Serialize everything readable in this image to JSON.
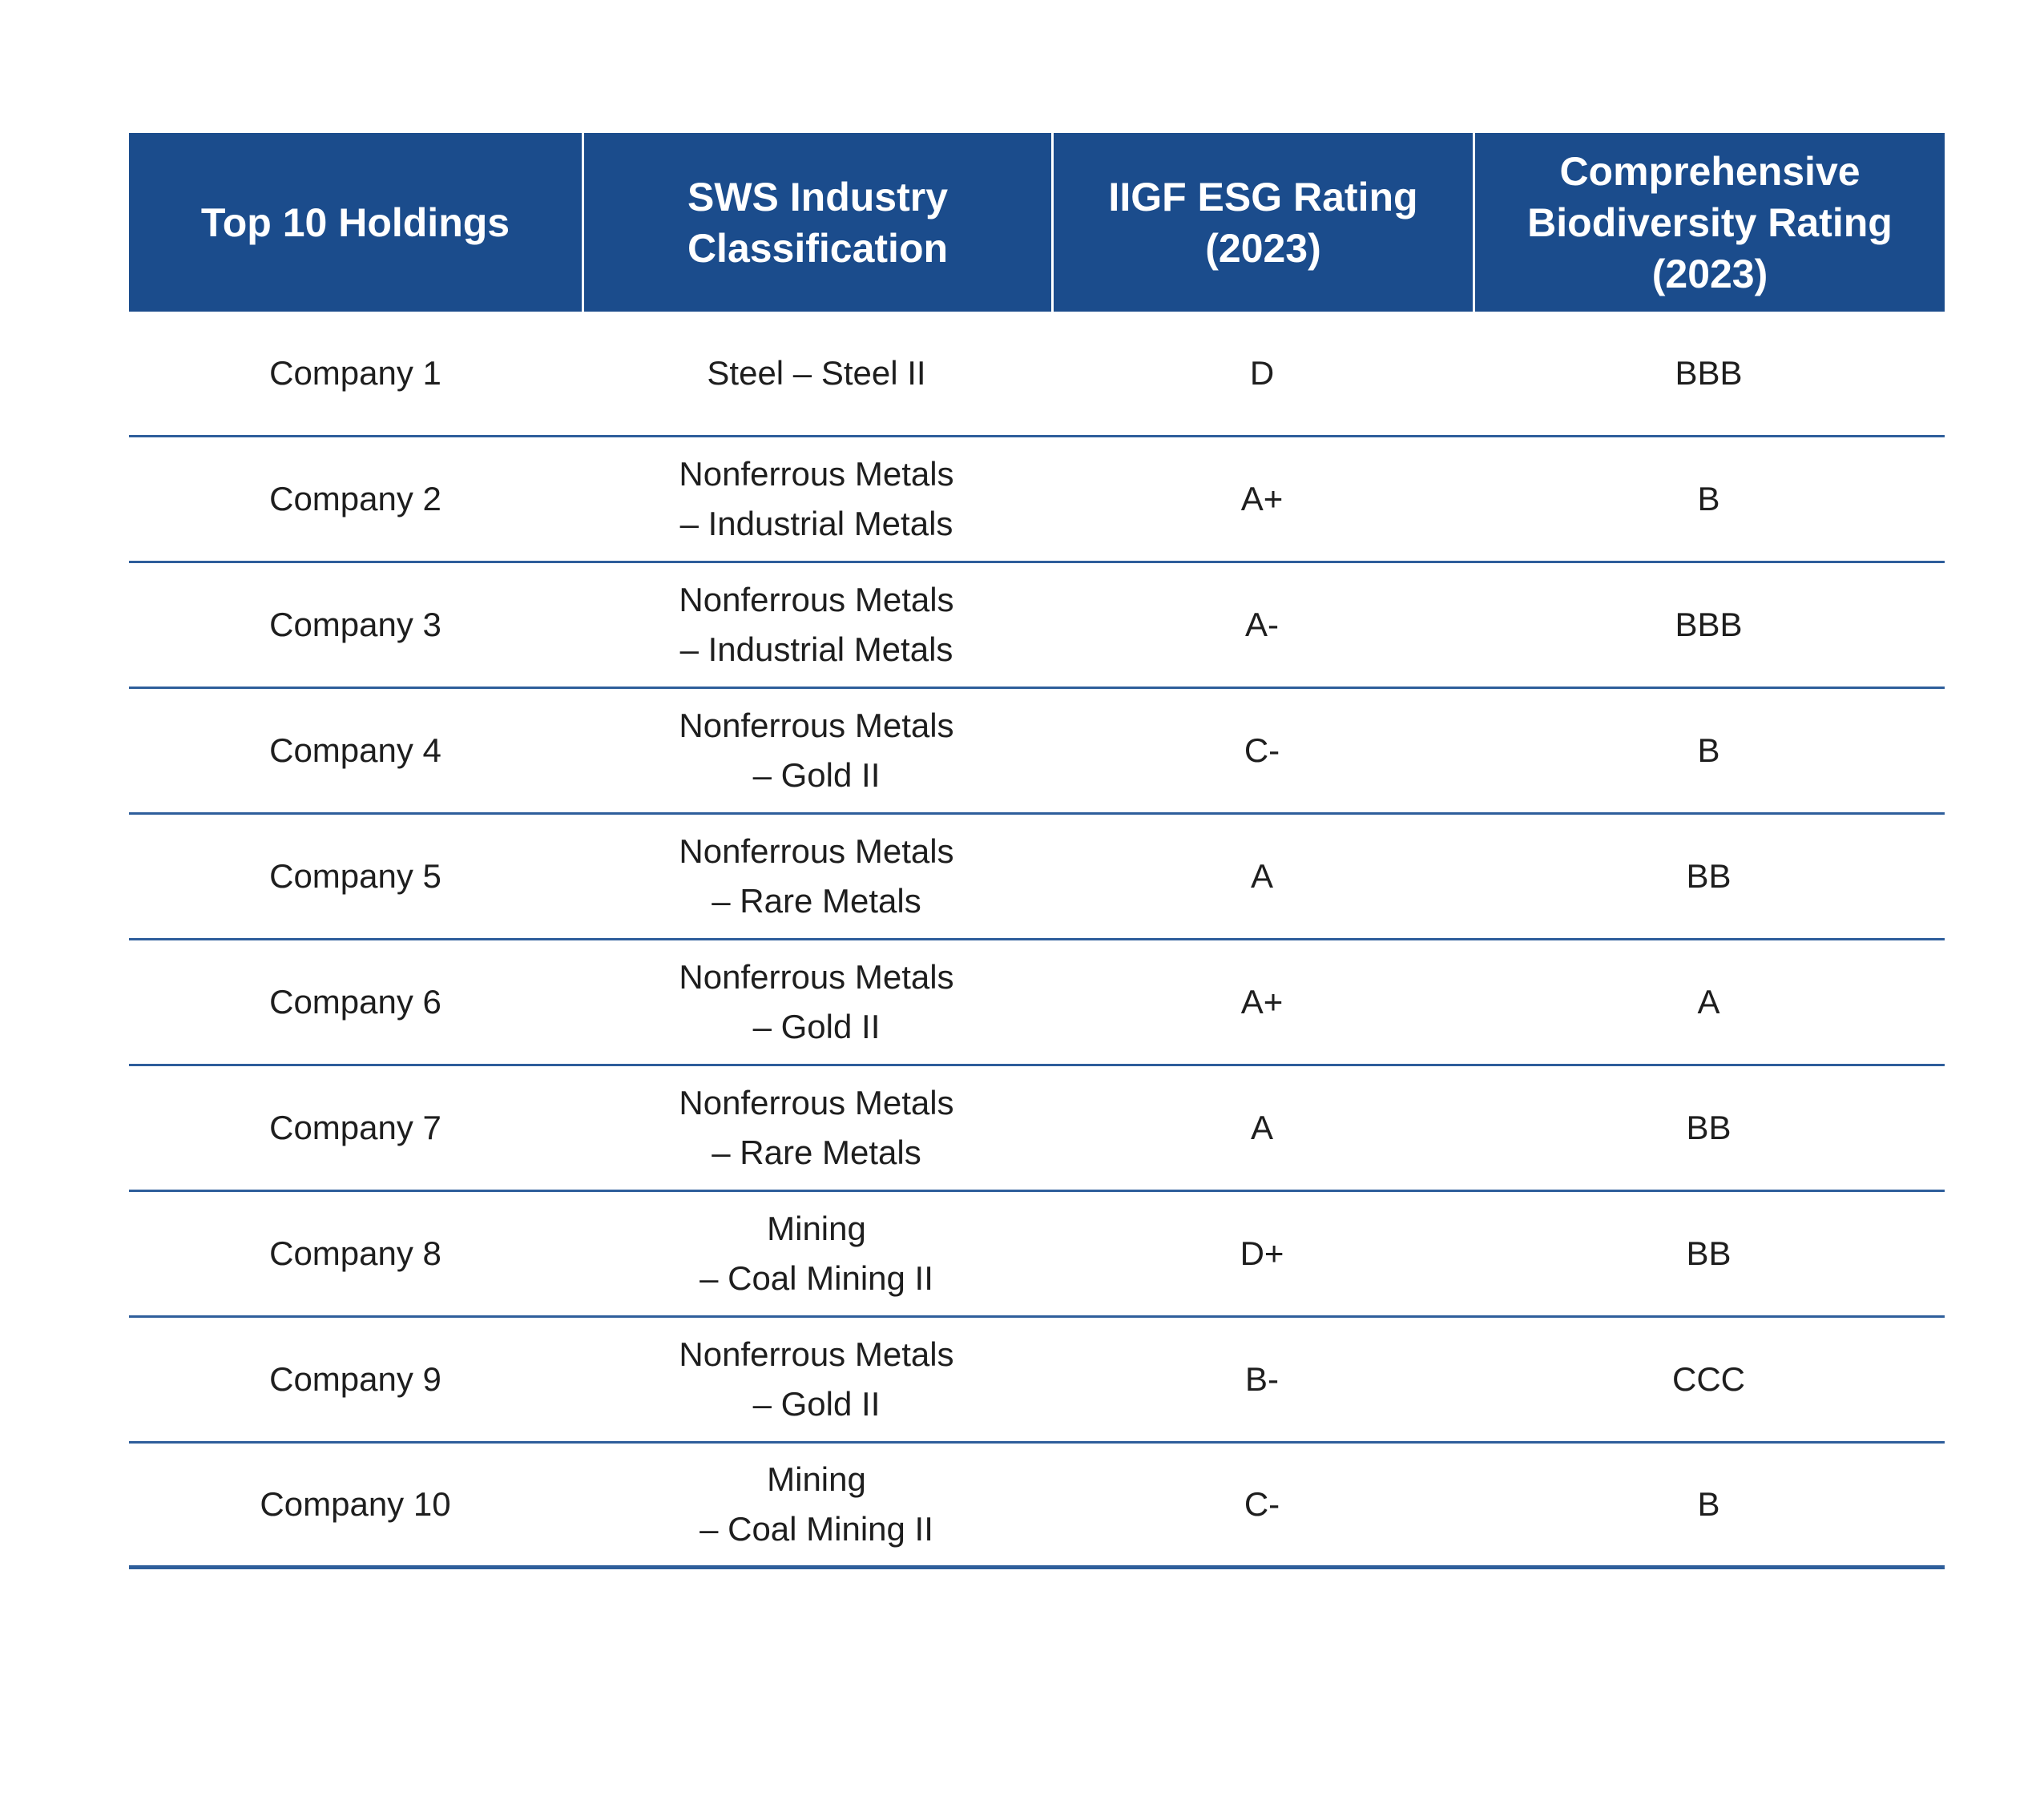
{
  "colors": {
    "header_bg": "#1B4C8C",
    "header_text": "#FFFFFF",
    "divider": "#2E5E9B",
    "body_text": "#1E1E1E",
    "background": "#FFFFFF"
  },
  "table": {
    "columns": [
      "Top 10 Holdings",
      "SWS Industry Classification",
      "IIGF ESG Rating (2023)",
      "Comprehensive Biodiversity Rating (2023)"
    ],
    "rows": [
      {
        "holding": "Company 1",
        "classification": [
          "Steel – Steel II",
          ""
        ],
        "esg_rating": "D",
        "biodiversity_rating": "BBB"
      },
      {
        "holding": "Company 2",
        "classification": [
          "Nonferrous Metals",
          "– Industrial Metals"
        ],
        "esg_rating": "A+",
        "biodiversity_rating": "B"
      },
      {
        "holding": "Company 3",
        "classification": [
          "Nonferrous Metals",
          "– Industrial Metals"
        ],
        "esg_rating": "A-",
        "biodiversity_rating": "BBB"
      },
      {
        "holding": "Company 4",
        "classification": [
          "Nonferrous Metals",
          "– Gold II"
        ],
        "esg_rating": "C-",
        "biodiversity_rating": "B"
      },
      {
        "holding": "Company 5",
        "classification": [
          "Nonferrous Metals",
          "– Rare Metals"
        ],
        "esg_rating": "A",
        "biodiversity_rating": "BB"
      },
      {
        "holding": "Company 6",
        "classification": [
          "Nonferrous Metals",
          "– Gold II"
        ],
        "esg_rating": "A+",
        "biodiversity_rating": "A"
      },
      {
        "holding": "Company 7",
        "classification": [
          "Nonferrous Metals",
          "– Rare Metals"
        ],
        "esg_rating": "A",
        "biodiversity_rating": "BB"
      },
      {
        "holding": "Company 8",
        "classification": [
          "Mining",
          "– Coal Mining II"
        ],
        "esg_rating": "D+",
        "biodiversity_rating": "BB"
      },
      {
        "holding": "Company 9",
        "classification": [
          "Nonferrous Metals",
          "– Gold II"
        ],
        "esg_rating": "B-",
        "biodiversity_rating": "CCC"
      },
      {
        "holding": "Company 10",
        "classification": [
          "Mining",
          "– Coal Mining II"
        ],
        "esg_rating": "C-",
        "biodiversity_rating": "B"
      }
    ]
  }
}
